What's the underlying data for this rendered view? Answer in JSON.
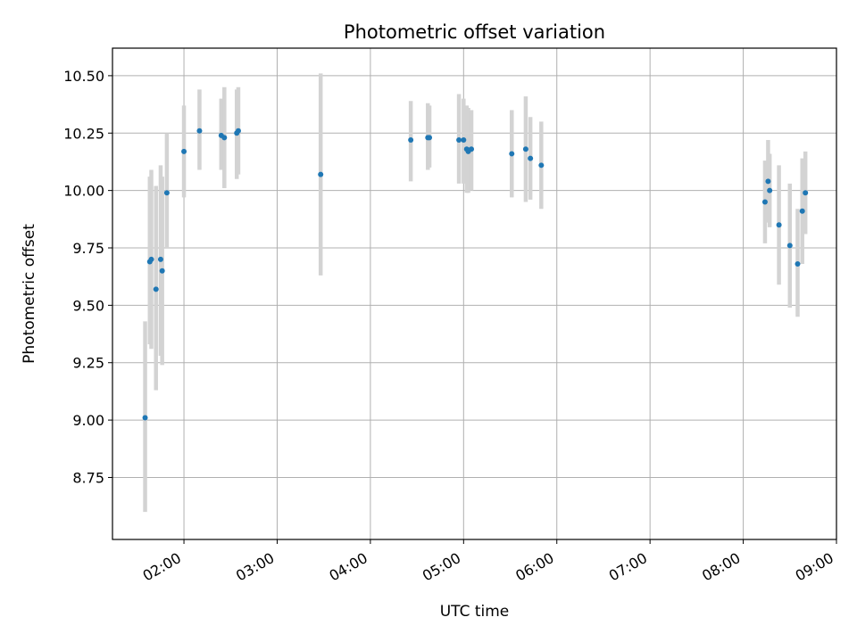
{
  "chart_data": {
    "type": "scatter",
    "title": "Photometric offset variation",
    "xlabel": "UTC time",
    "ylabel": "Photometric offset",
    "x_axis": "time",
    "xlim": [
      "01:14",
      "09:00"
    ],
    "ylim": [
      8.48,
      10.62
    ],
    "x_ticks": [
      "02:00",
      "03:00",
      "04:00",
      "05:00",
      "06:00",
      "07:00",
      "08:00",
      "09:00"
    ],
    "y_ticks": [
      "8.75",
      "9.00",
      "9.25",
      "9.50",
      "9.75",
      "10.00",
      "10.25",
      "10.50"
    ],
    "grid": true,
    "legend": "none",
    "colors": {
      "points": "#1f77b4",
      "errorbars": "#d3d3d3",
      "grid": "#b0b0b0"
    },
    "points": [
      {
        "x": "01:35",
        "y": 9.01,
        "ymin": 8.6,
        "ymax": 9.43
      },
      {
        "x": "01:38",
        "y": 9.69,
        "ymin": 9.33,
        "ymax": 10.06
      },
      {
        "x": "01:39",
        "y": 9.7,
        "ymin": 9.31,
        "ymax": 10.09
      },
      {
        "x": "01:42",
        "y": 9.57,
        "ymin": 9.13,
        "ymax": 10.02
      },
      {
        "x": "01:45",
        "y": 9.7,
        "ymin": 9.28,
        "ymax": 10.11
      },
      {
        "x": "01:46",
        "y": 9.65,
        "ymin": 9.24,
        "ymax": 10.06
      },
      {
        "x": "01:49",
        "y": 9.99,
        "ymin": 9.75,
        "ymax": 10.25
      },
      {
        "x": "02:00",
        "y": 10.17,
        "ymin": 9.97,
        "ymax": 10.37
      },
      {
        "x": "02:10",
        "y": 10.26,
        "ymin": 10.09,
        "ymax": 10.44
      },
      {
        "x": "02:24",
        "y": 10.24,
        "ymin": 10.09,
        "ymax": 10.4
      },
      {
        "x": "02:26",
        "y": 10.23,
        "ymin": 10.01,
        "ymax": 10.45
      },
      {
        "x": "02:34",
        "y": 10.25,
        "ymin": 10.05,
        "ymax": 10.44
      },
      {
        "x": "02:35",
        "y": 10.26,
        "ymin": 10.07,
        "ymax": 10.45
      },
      {
        "x": "03:28",
        "y": 10.07,
        "ymin": 9.63,
        "ymax": 10.51
      },
      {
        "x": "04:26",
        "y": 10.22,
        "ymin": 10.04,
        "ymax": 10.39
      },
      {
        "x": "04:37",
        "y": 10.23,
        "ymin": 10.09,
        "ymax": 10.38
      },
      {
        "x": "04:38",
        "y": 10.23,
        "ymin": 10.1,
        "ymax": 10.37
      },
      {
        "x": "04:57",
        "y": 10.22,
        "ymin": 10.03,
        "ymax": 10.42
      },
      {
        "x": "05:00",
        "y": 10.22,
        "ymin": 10.03,
        "ymax": 10.4
      },
      {
        "x": "05:02",
        "y": 10.18,
        "ymin": 9.99,
        "ymax": 10.37
      },
      {
        "x": "05:03",
        "y": 10.17,
        "ymin": 9.99,
        "ymax": 10.36
      },
      {
        "x": "05:05",
        "y": 10.18,
        "ymin": 10.0,
        "ymax": 10.35
      },
      {
        "x": "05:31",
        "y": 10.16,
        "ymin": 9.97,
        "ymax": 10.35
      },
      {
        "x": "05:40",
        "y": 10.18,
        "ymin": 9.95,
        "ymax": 10.41
      },
      {
        "x": "05:43",
        "y": 10.14,
        "ymin": 9.96,
        "ymax": 10.32
      },
      {
        "x": "05:50",
        "y": 10.11,
        "ymin": 9.92,
        "ymax": 10.3
      },
      {
        "x": "08:14",
        "y": 9.95,
        "ymin": 9.77,
        "ymax": 10.13
      },
      {
        "x": "08:16",
        "y": 10.04,
        "ymin": 9.86,
        "ymax": 10.22
      },
      {
        "x": "08:17",
        "y": 10.0,
        "ymin": 9.84,
        "ymax": 10.16
      },
      {
        "x": "08:23",
        "y": 9.85,
        "ymin": 9.59,
        "ymax": 10.11
      },
      {
        "x": "08:30",
        "y": 9.76,
        "ymin": 9.49,
        "ymax": 10.03
      },
      {
        "x": "08:35",
        "y": 9.68,
        "ymin": 9.45,
        "ymax": 9.92
      },
      {
        "x": "08:38",
        "y": 9.91,
        "ymin": 9.68,
        "ymax": 10.14
      },
      {
        "x": "08:40",
        "y": 9.99,
        "ymin": 9.81,
        "ymax": 10.17
      }
    ]
  }
}
